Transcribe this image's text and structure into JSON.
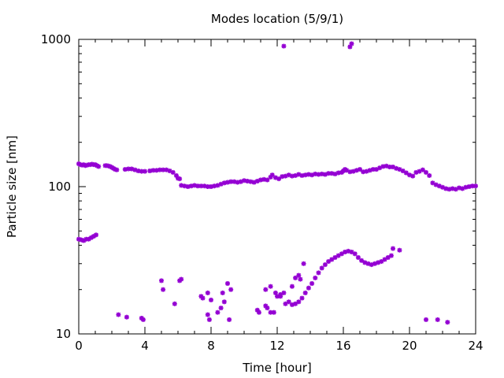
{
  "chart_data": {
    "type": "scatter",
    "title": "Modes location (5/9/1)",
    "xlabel": "Time [hour]",
    "ylabel": "Particle size [nm]",
    "xlim": [
      0,
      24
    ],
    "ylim": [
      10,
      1000
    ],
    "yscale": "log",
    "grid": false,
    "legend": "none",
    "marker_color": "#9400D3",
    "marker": "asterisk",
    "xticks": [
      "0",
      "4",
      "8",
      "12",
      "16",
      "20",
      "24"
    ],
    "yticks": [
      "10",
      "100",
      "1000"
    ],
    "series": [
      {
        "points": [
          [
            0.0,
            143
          ],
          [
            0.1,
            141
          ],
          [
            0.2,
            140
          ],
          [
            0.3,
            141
          ],
          [
            0.4,
            139
          ],
          [
            0.5,
            140
          ],
          [
            0.6,
            141
          ],
          [
            0.7,
            141
          ],
          [
            0.8,
            142
          ],
          [
            0.9,
            141
          ],
          [
            1.0,
            141
          ],
          [
            1.1,
            139
          ],
          [
            1.2,
            137
          ],
          [
            1.6,
            139
          ],
          [
            1.7,
            139
          ],
          [
            1.8,
            138
          ],
          [
            1.9,
            137
          ],
          [
            2.0,
            135
          ],
          [
            2.1,
            133
          ],
          [
            2.2,
            131
          ],
          [
            2.3,
            130
          ],
          [
            2.8,
            131
          ],
          [
            3.0,
            132
          ],
          [
            3.2,
            132
          ],
          [
            3.4,
            130
          ],
          [
            3.6,
            128
          ],
          [
            3.8,
            127
          ],
          [
            4.0,
            127
          ],
          [
            4.3,
            128
          ],
          [
            4.5,
            129
          ],
          [
            4.7,
            129
          ],
          [
            4.9,
            130
          ],
          [
            5.1,
            130
          ],
          [
            5.3,
            130
          ],
          [
            5.5,
            128
          ],
          [
            5.7,
            125
          ],
          [
            5.9,
            119
          ],
          [
            6.0,
            114
          ],
          [
            6.1,
            113
          ],
          [
            6.2,
            102
          ],
          [
            6.4,
            101
          ],
          [
            6.6,
            100
          ],
          [
            6.8,
            101
          ],
          [
            7.0,
            102
          ],
          [
            7.2,
            101
          ],
          [
            7.4,
            101
          ],
          [
            7.6,
            101
          ],
          [
            7.8,
            100
          ],
          [
            8.0,
            100
          ],
          [
            8.2,
            101
          ],
          [
            8.4,
            102
          ],
          [
            8.6,
            104
          ],
          [
            8.8,
            106
          ],
          [
            9.0,
            107
          ],
          [
            9.2,
            108
          ],
          [
            9.4,
            108
          ],
          [
            9.6,
            107
          ],
          [
            9.8,
            108
          ],
          [
            10.0,
            110
          ],
          [
            10.2,
            109
          ],
          [
            10.4,
            108
          ],
          [
            10.6,
            107
          ],
          [
            10.8,
            109
          ],
          [
            11.0,
            111
          ],
          [
            11.2,
            112
          ],
          [
            11.4,
            111
          ],
          [
            11.6,
            116
          ],
          [
            11.7,
            120
          ],
          [
            11.9,
            115
          ],
          [
            12.1,
            113
          ],
          [
            12.3,
            117
          ],
          [
            12.5,
            118
          ],
          [
            12.7,
            120
          ],
          [
            12.9,
            118
          ],
          [
            13.1,
            119
          ],
          [
            13.3,
            121
          ],
          [
            13.5,
            119
          ],
          [
            13.7,
            120
          ],
          [
            13.9,
            121
          ],
          [
            14.1,
            120
          ],
          [
            14.3,
            122
          ],
          [
            14.5,
            121
          ],
          [
            14.7,
            122
          ],
          [
            14.9,
            121
          ],
          [
            15.1,
            123
          ],
          [
            15.3,
            123
          ],
          [
            15.5,
            122
          ],
          [
            15.7,
            124
          ],
          [
            15.9,
            125
          ],
          [
            16.0,
            128
          ],
          [
            16.1,
            131
          ],
          [
            16.2,
            129
          ],
          [
            16.4,
            126
          ],
          [
            16.6,
            127
          ],
          [
            16.8,
            129
          ],
          [
            17.0,
            131
          ],
          [
            17.2,
            126
          ],
          [
            17.4,
            127
          ],
          [
            17.6,
            129
          ],
          [
            17.8,
            131
          ],
          [
            18.0,
            131
          ],
          [
            18.2,
            134
          ],
          [
            18.4,
            137
          ],
          [
            18.6,
            138
          ],
          [
            18.8,
            136
          ],
          [
            19.0,
            136
          ],
          [
            19.2,
            133
          ],
          [
            19.4,
            131
          ],
          [
            19.6,
            128
          ],
          [
            19.8,
            124
          ],
          [
            20.0,
            120
          ],
          [
            20.2,
            118
          ],
          [
            20.4,
            125
          ],
          [
            20.6,
            127
          ],
          [
            20.8,
            130
          ],
          [
            21.0,
            125
          ],
          [
            21.2,
            119
          ],
          [
            21.4,
            106
          ],
          [
            21.6,
            103
          ],
          [
            21.8,
            101
          ],
          [
            22.0,
            99
          ],
          [
            22.2,
            97
          ],
          [
            22.4,
            96
          ],
          [
            22.6,
            97
          ],
          [
            22.8,
            96
          ],
          [
            23.0,
            98
          ],
          [
            23.2,
            97
          ],
          [
            23.4,
            99
          ],
          [
            23.6,
            100
          ],
          [
            23.8,
            101
          ],
          [
            24.0,
            101
          ],
          [
            0.0,
            44
          ],
          [
            0.15,
            43.5
          ],
          [
            0.3,
            43
          ],
          [
            0.45,
            44
          ],
          [
            0.6,
            44
          ],
          [
            0.75,
            45
          ],
          [
            0.9,
            46
          ],
          [
            1.05,
            47
          ],
          [
            11.3,
            20
          ],
          [
            11.6,
            21
          ],
          [
            11.9,
            19
          ],
          [
            12.2,
            18.5
          ],
          [
            12.4,
            19
          ],
          [
            12.5,
            16
          ],
          [
            12.7,
            16.5
          ],
          [
            12.9,
            15.8
          ],
          [
            13.1,
            16
          ],
          [
            13.3,
            16.5
          ],
          [
            13.5,
            17.5
          ],
          [
            13.7,
            19
          ],
          [
            13.9,
            20.5
          ],
          [
            14.1,
            22
          ],
          [
            14.3,
            24
          ],
          [
            14.5,
            26
          ],
          [
            14.7,
            28
          ],
          [
            14.9,
            29.5
          ],
          [
            15.1,
            31
          ],
          [
            15.3,
            32
          ],
          [
            15.5,
            33
          ],
          [
            15.7,
            34
          ],
          [
            15.9,
            35
          ],
          [
            16.1,
            36
          ],
          [
            16.3,
            36.5
          ],
          [
            16.5,
            36
          ],
          [
            16.7,
            35
          ],
          [
            16.9,
            33
          ],
          [
            17.1,
            31.5
          ],
          [
            17.3,
            30.5
          ],
          [
            17.5,
            30
          ],
          [
            17.7,
            29.5
          ],
          [
            17.9,
            30
          ],
          [
            18.1,
            30.5
          ],
          [
            18.3,
            31
          ],
          [
            18.5,
            32
          ],
          [
            18.7,
            33
          ],
          [
            18.9,
            34
          ],
          [
            19.0,
            38
          ],
          [
            19.4,
            37
          ],
          [
            2.4,
            13.5
          ],
          [
            2.9,
            13
          ],
          [
            3.8,
            12.8
          ],
          [
            3.9,
            12.5
          ],
          [
            5.0,
            23
          ],
          [
            5.1,
            20
          ],
          [
            5.8,
            16
          ],
          [
            6.1,
            23
          ],
          [
            6.2,
            23.5
          ],
          [
            7.4,
            18
          ],
          [
            7.5,
            17.5
          ],
          [
            7.8,
            19
          ],
          [
            7.8,
            13.5
          ],
          [
            7.9,
            12.5
          ],
          [
            8.0,
            17
          ],
          [
            8.4,
            14
          ],
          [
            8.6,
            15
          ],
          [
            8.7,
            19
          ],
          [
            8.8,
            16.5
          ],
          [
            9.0,
            22
          ],
          [
            9.1,
            12.5
          ],
          [
            9.2,
            20
          ],
          [
            10.8,
            14.5
          ],
          [
            10.9,
            14
          ],
          [
            11.3,
            15.5
          ],
          [
            11.4,
            15
          ],
          [
            11.6,
            14
          ],
          [
            11.8,
            14
          ],
          [
            12.0,
            18
          ],
          [
            12.2,
            18
          ],
          [
            12.9,
            21
          ],
          [
            13.1,
            24
          ],
          [
            13.3,
            25
          ],
          [
            13.4,
            23.5
          ],
          [
            13.6,
            30
          ],
          [
            21.0,
            12.5
          ],
          [
            21.7,
            12.5
          ],
          [
            22.3,
            12
          ],
          [
            12.4,
            900
          ],
          [
            16.4,
            890
          ],
          [
            16.5,
            935
          ]
        ]
      }
    ]
  }
}
